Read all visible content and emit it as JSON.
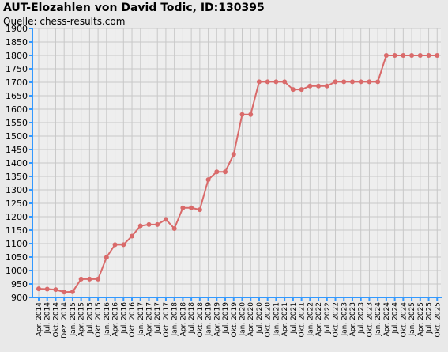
{
  "chart_data": {
    "type": "line",
    "title": "AUT-Elozahlen von David Todic, ID:130395",
    "subtitle": "Quelle: chess-results.com",
    "xlabel": "",
    "ylabel": "",
    "ylim": [
      900,
      1900
    ],
    "yticks": [
      900,
      950,
      1000,
      1050,
      1100,
      1150,
      1200,
      1250,
      1300,
      1350,
      1400,
      1450,
      1500,
      1550,
      1600,
      1650,
      1700,
      1750,
      1800,
      1850,
      1900
    ],
    "grid": true,
    "colors": {
      "line": "#d96a6a",
      "axis": "#3399ff",
      "grid": "#c8c8c8",
      "plot_bg": "#eeeeee"
    },
    "categories": [
      "Apr. 2014",
      "Jul. 2014",
      "Okt. 2014",
      "Dez. 2014",
      "Jan. 2015",
      "Apr. 2015",
      "Jul. 2015",
      "Okt. 2015",
      "Jan. 2016",
      "Apr. 2016",
      "Jul. 2016",
      "Okt. 2016",
      "Jan. 2017",
      "Apr. 2017",
      "Jul. 2017",
      "Okt. 2017",
      "Jan. 2018",
      "Apr. 2018",
      "Jul. 2018",
      "Okt. 2018",
      "Jan. 2019",
      "Apr. 2019",
      "Jul. 2019",
      "Okt. 2019",
      "Jan. 2020",
      "Apr. 2020",
      "Jul. 2020",
      "Okt. 2020",
      "Jan. 2021",
      "Apr. 2021",
      "Jul. 2021",
      "Okt. 2021",
      "Jan. 2022",
      "Apr. 2022",
      "Jul. 2022",
      "Okt. 2022",
      "Jan. 2023",
      "Apr. 2023",
      "Jul. 2023",
      "Okt. 2023",
      "Jan. 2024",
      "Apr. 2024",
      "Jul. 2024",
      "Okt. 2024",
      "Jan. 2025",
      "Apr. 2025",
      "Jul. 2025",
      "Okt. 2025"
    ],
    "series": [
      {
        "name": "",
        "values": [
          932,
          931,
          929,
          920,
          921,
          968,
          968,
          968,
          1049,
          1096,
          1096,
          1128,
          1166,
          1171,
          1171,
          1190,
          1156,
          1233,
          1233,
          1226,
          1338,
          1367,
          1367,
          1432,
          1580,
          1580,
          1702,
          1702,
          1702,
          1702,
          1673,
          1673,
          1686,
          1686,
          1686,
          1702,
          1702,
          1702,
          1702,
          1702,
          1702,
          1800,
          1800,
          1800,
          1800,
          1800,
          1800,
          1800
        ]
      }
    ]
  }
}
